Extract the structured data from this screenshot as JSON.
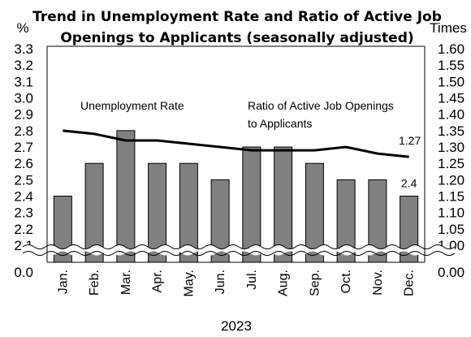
{
  "chart_data": {
    "type": "bar",
    "title_lines": [
      "Trend in Unemployment Rate and Ratio of Active Job",
      "Openings to Applicants (seasonally adjusted)"
    ],
    "left_unit": "%",
    "right_unit": "Times",
    "xlabel": "2023",
    "categories": [
      "Jan.",
      "Feb.",
      "Mar.",
      "Apr.",
      "May.",
      "Jun.",
      "Jul.",
      "Aug.",
      "Sep.",
      "Oct.",
      "Nov.",
      "Dec."
    ],
    "left_ticks": [
      "3.3",
      "3.2",
      "3.1",
      "3.0",
      "2.9",
      "2.8",
      "2.7",
      "2.6",
      "2.5",
      "2.4",
      "2.3",
      "2.2",
      "2.1"
    ],
    "left_zero_label": "0.0",
    "right_ticks": [
      "1.60",
      "1.55",
      "1.50",
      "1.45",
      "1.40",
      "1.35",
      "1.30",
      "1.25",
      "1.20",
      "1.15",
      "1.10",
      "1.05",
      "1.00"
    ],
    "right_zero_label": "0.00",
    "ylim_left": [
      2.1,
      3.3
    ],
    "ylim_right": [
      1.0,
      1.6
    ],
    "axis_break": true,
    "series": [
      {
        "name": "Unemployment Rate",
        "type": "bar",
        "axis": "left",
        "color": "#808080",
        "values": [
          2.4,
          2.6,
          2.8,
          2.6,
          2.6,
          2.5,
          2.7,
          2.7,
          2.6,
          2.5,
          2.5,
          2.4
        ]
      },
      {
        "name": "Ratio of Active Job Openings to Applicants",
        "type": "line",
        "axis": "right",
        "color": "#000000",
        "values": [
          1.35,
          1.34,
          1.32,
          1.32,
          1.31,
          1.3,
          1.29,
          1.29,
          1.29,
          1.3,
          1.28,
          1.27
        ]
      }
    ],
    "annotations": {
      "bar_series_label": "Unemployment  Rate",
      "line_series_label_lines": [
        "Ratio of Active Job Openings",
        "to Applicants"
      ],
      "last_bar_label": "2.4",
      "last_line_label": "1.27"
    },
    "grid": false
  }
}
